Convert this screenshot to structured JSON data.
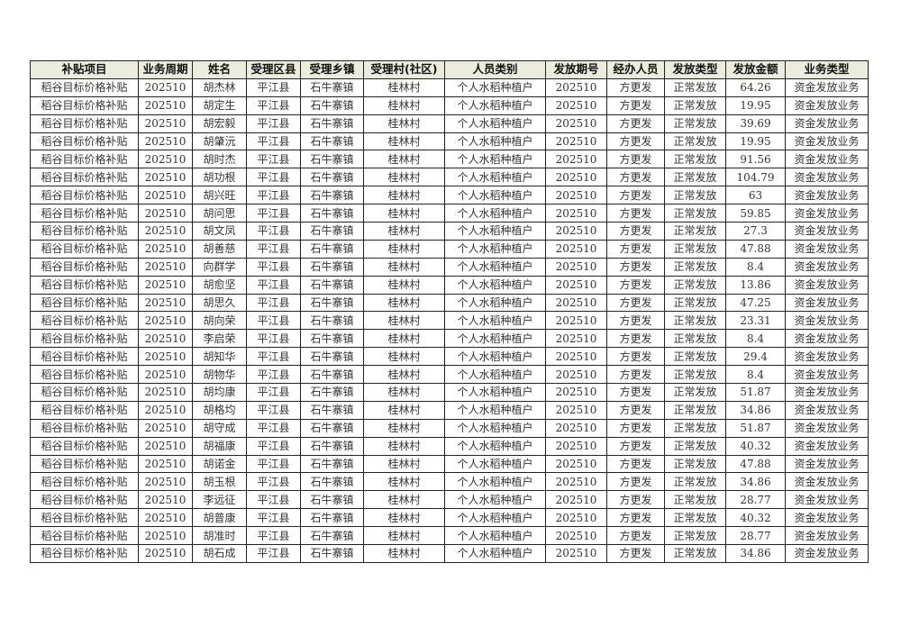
{
  "table": {
    "headers": [
      "补贴项目",
      "业务周期",
      "姓名",
      "受理区县",
      "受理乡镇",
      "受理村(社区)",
      "人员类别",
      "发放期号",
      "经办人员",
      "发放类型",
      "发放金额",
      "业务类型"
    ],
    "rows": [
      [
        "稻谷目标价格补贴",
        "202510",
        "胡杰林",
        "平江县",
        "石牛寨镇",
        "桂林村",
        "个人水稻种植户",
        "202510",
        "方更发",
        "正常发放",
        "64.26",
        "资金发放业务"
      ],
      [
        "稻谷目标价格补贴",
        "202510",
        "胡定生",
        "平江县",
        "石牛寨镇",
        "桂林村",
        "个人水稻种植户",
        "202510",
        "方更发",
        "正常发放",
        "19.95",
        "资金发放业务"
      ],
      [
        "稻谷目标价格补贴",
        "202510",
        "胡宏毅",
        "平江县",
        "石牛寨镇",
        "桂林村",
        "个人水稻种植户",
        "202510",
        "方更发",
        "正常发放",
        "39.69",
        "资金发放业务"
      ],
      [
        "稻谷目标价格补贴",
        "202510",
        "胡肇沅",
        "平江县",
        "石牛寨镇",
        "桂林村",
        "个人水稻种植户",
        "202510",
        "方更发",
        "正常发放",
        "19.95",
        "资金发放业务"
      ],
      [
        "稻谷目标价格补贴",
        "202510",
        "胡时杰",
        "平江县",
        "石牛寨镇",
        "桂林村",
        "个人水稻种植户",
        "202510",
        "方更发",
        "正常发放",
        "91.56",
        "资金发放业务"
      ],
      [
        "稻谷目标价格补贴",
        "202510",
        "胡功根",
        "平江县",
        "石牛寨镇",
        "桂林村",
        "个人水稻种植户",
        "202510",
        "方更发",
        "正常发放",
        "104.79",
        "资金发放业务"
      ],
      [
        "稻谷目标价格补贴",
        "202510",
        "胡兴旺",
        "平江县",
        "石牛寨镇",
        "桂林村",
        "个人水稻种植户",
        "202510",
        "方更发",
        "正常发放",
        "63",
        "资金发放业务"
      ],
      [
        "稻谷目标价格补贴",
        "202510",
        "胡问思",
        "平江县",
        "石牛寨镇",
        "桂林村",
        "个人水稻种植户",
        "202510",
        "方更发",
        "正常发放",
        "59.85",
        "资金发放业务"
      ],
      [
        "稻谷目标价格补贴",
        "202510",
        "胡文凤",
        "平江县",
        "石牛寨镇",
        "桂林村",
        "个人水稻种植户",
        "202510",
        "方更发",
        "正常发放",
        "27.3",
        "资金发放业务"
      ],
      [
        "稻谷目标价格补贴",
        "202510",
        "胡善慈",
        "平江县",
        "石牛寨镇",
        "桂林村",
        "个人水稻种植户",
        "202510",
        "方更发",
        "正常发放",
        "47.88",
        "资金发放业务"
      ],
      [
        "稻谷目标价格补贴",
        "202510",
        "向群学",
        "平江县",
        "石牛寨镇",
        "桂林村",
        "个人水稻种植户",
        "202510",
        "方更发",
        "正常发放",
        "8.4",
        "资金发放业务"
      ],
      [
        "稻谷目标价格补贴",
        "202510",
        "胡愈坚",
        "平江县",
        "石牛寨镇",
        "桂林村",
        "个人水稻种植户",
        "202510",
        "方更发",
        "正常发放",
        "13.86",
        "资金发放业务"
      ],
      [
        "稻谷目标价格补贴",
        "202510",
        "胡思久",
        "平江县",
        "石牛寨镇",
        "桂林村",
        "个人水稻种植户",
        "202510",
        "方更发",
        "正常发放",
        "47.25",
        "资金发放业务"
      ],
      [
        "稻谷目标价格补贴",
        "202510",
        "胡向荣",
        "平江县",
        "石牛寨镇",
        "桂林村",
        "个人水稻种植户",
        "202510",
        "方更发",
        "正常发放",
        "23.31",
        "资金发放业务"
      ],
      [
        "稻谷目标价格补贴",
        "202510",
        "李启荣",
        "平江县",
        "石牛寨镇",
        "桂林村",
        "个人水稻种植户",
        "202510",
        "方更发",
        "正常发放",
        "8.4",
        "资金发放业务"
      ],
      [
        "稻谷目标价格补贴",
        "202510",
        "胡知华",
        "平江县",
        "石牛寨镇",
        "桂林村",
        "个人水稻种植户",
        "202510",
        "方更发",
        "正常发放",
        "29.4",
        "资金发放业务"
      ],
      [
        "稻谷目标价格补贴",
        "202510",
        "胡物华",
        "平江县",
        "石牛寨镇",
        "桂林村",
        "个人水稻种植户",
        "202510",
        "方更发",
        "正常发放",
        "8.4",
        "资金发放业务"
      ],
      [
        "稻谷目标价格补贴",
        "202510",
        "胡均康",
        "平江县",
        "石牛寨镇",
        "桂林村",
        "个人水稻种植户",
        "202510",
        "方更发",
        "正常发放",
        "51.87",
        "资金发放业务"
      ],
      [
        "稻谷目标价格补贴",
        "202510",
        "胡格均",
        "平江县",
        "石牛寨镇",
        "桂林村",
        "个人水稻种植户",
        "202510",
        "方更发",
        "正常发放",
        "34.86",
        "资金发放业务"
      ],
      [
        "稻谷目标价格补贴",
        "202510",
        "胡守成",
        "平江县",
        "石牛寨镇",
        "桂林村",
        "个人水稻种植户",
        "202510",
        "方更发",
        "正常发放",
        "51.87",
        "资金发放业务"
      ],
      [
        "稻谷目标价格补贴",
        "202510",
        "胡福康",
        "平江县",
        "石牛寨镇",
        "桂林村",
        "个人水稻种植户",
        "202510",
        "方更发",
        "正常发放",
        "40.32",
        "资金发放业务"
      ],
      [
        "稻谷目标价格补贴",
        "202510",
        "胡诺金",
        "平江县",
        "石牛寨镇",
        "桂林村",
        "个人水稻种植户",
        "202510",
        "方更发",
        "正常发放",
        "47.88",
        "资金发放业务"
      ],
      [
        "稻谷目标价格补贴",
        "202510",
        "胡玉根",
        "平江县",
        "石牛寨镇",
        "桂林村",
        "个人水稻种植户",
        "202510",
        "方更发",
        "正常发放",
        "34.86",
        "资金发放业务"
      ],
      [
        "稻谷目标价格补贴",
        "202510",
        "李远征",
        "平江县",
        "石牛寨镇",
        "桂林村",
        "个人水稻种植户",
        "202510",
        "方更发",
        "正常发放",
        "28.77",
        "资金发放业务"
      ],
      [
        "稻谷目标价格补贴",
        "202510",
        "胡普康",
        "平江县",
        "石牛寨镇",
        "桂林村",
        "个人水稻种植户",
        "202510",
        "方更发",
        "正常发放",
        "40.32",
        "资金发放业务"
      ],
      [
        "稻谷目标价格补贴",
        "202510",
        "胡准时",
        "平江县",
        "石牛寨镇",
        "桂林村",
        "个人水稻种植户",
        "202510",
        "方更发",
        "正常发放",
        "28.77",
        "资金发放业务"
      ],
      [
        "稻谷目标价格补贴",
        "202510",
        "胡石成",
        "平江县",
        "石牛寨镇",
        "桂林村",
        "个人水稻种植户",
        "202510",
        "方更发",
        "正常发放",
        "34.86",
        "资金发放业务"
      ]
    ]
  },
  "colors": {
    "header_bg": "#ecebe0",
    "border": "#222222"
  }
}
